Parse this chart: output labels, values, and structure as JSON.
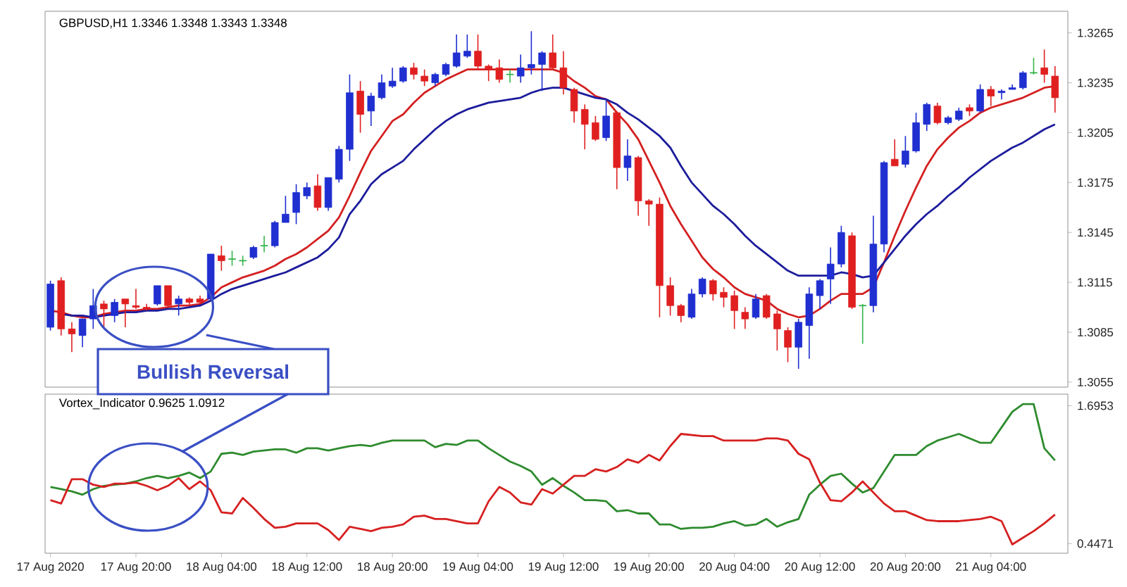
{
  "chart_data": [
    {
      "type": "candlestick",
      "title": "GBPUSD,H1 1.3346 1.3348 1.3343 1.3348",
      "categories": [
        null,
        null,
        null,
        null,
        null,
        null,
        null,
        null,
        null,
        null,
        null,
        null,
        null,
        null,
        null,
        null,
        null,
        null,
        null,
        null,
        null,
        null,
        null,
        null,
        null,
        null,
        null,
        null,
        null,
        null,
        null,
        null,
        null,
        null,
        null,
        null,
        null,
        null,
        null,
        null,
        null,
        null,
        null,
        null,
        null,
        null,
        null,
        null,
        null,
        null,
        null,
        null,
        null,
        null,
        null,
        null,
        null,
        null,
        null,
        null,
        null,
        null,
        null,
        null,
        null,
        null,
        null,
        null,
        null,
        null,
        null,
        null,
        null,
        null,
        null,
        null,
        null,
        null,
        null,
        null,
        null,
        null,
        null,
        null,
        null,
        null,
        null,
        null,
        null,
        null,
        null,
        null,
        null,
        null,
        null
      ],
      "ohlc": [
        [
          1.3088,
          1.3116,
          1.3086,
          1.3114
        ],
        [
          1.3116,
          1.3118,
          1.3083,
          1.3087
        ],
        [
          1.3087,
          1.3091,
          1.3073,
          1.3084
        ],
        [
          1.3083,
          1.3093,
          1.3076,
          1.3093
        ],
        [
          1.3093,
          1.3111,
          1.3087,
          1.3101
        ],
        [
          1.3102,
          1.3104,
          1.3087,
          1.3099
        ],
        [
          1.3095,
          1.3105,
          1.3091,
          1.3103
        ],
        [
          1.3105,
          1.3105,
          1.3088,
          1.3102
        ],
        [
          1.3101,
          1.3111,
          1.3099,
          1.31
        ],
        [
          1.31,
          1.3102,
          1.3098,
          1.3099
        ],
        [
          1.3102,
          1.3113,
          1.3101,
          1.3113
        ],
        [
          1.3113,
          1.3113,
          1.31,
          1.3101
        ],
        [
          1.3102,
          1.3107,
          1.3095,
          1.3105
        ],
        [
          1.3105,
          1.3106,
          1.3101,
          1.3103
        ],
        [
          1.3105,
          1.3107,
          1.3102,
          1.3103
        ],
        [
          1.3105,
          1.3132,
          1.3104,
          1.3132
        ],
        [
          1.3131,
          1.3137,
          1.3122,
          1.3128
        ],
        [
          1.3129,
          1.3134,
          1.3125,
          1.3129
        ],
        [
          1.3128,
          1.3131,
          1.3125,
          1.3128
        ],
        [
          1.313,
          1.3137,
          1.3129,
          1.3136
        ],
        [
          1.3137,
          1.3143,
          1.3133,
          1.3137
        ],
        [
          1.3137,
          1.3152,
          1.3136,
          1.3151
        ],
        [
          1.3151,
          1.3167,
          1.3151,
          1.3156
        ],
        [
          1.3157,
          1.3174,
          1.315,
          1.3169
        ],
        [
          1.3167,
          1.3175,
          1.3165,
          1.3172
        ],
        [
          1.3173,
          1.318,
          1.3158,
          1.316
        ],
        [
          1.316,
          1.3178,
          1.3158,
          1.3178
        ],
        [
          1.3177,
          1.3197,
          1.3175,
          1.3195
        ],
        [
          1.3195,
          1.324,
          1.3188,
          1.3229
        ],
        [
          1.323,
          1.3236,
          1.3205,
          1.3216
        ],
        [
          1.3218,
          1.3229,
          1.3209,
          1.3227
        ],
        [
          1.3226,
          1.324,
          1.3225,
          1.3235
        ],
        [
          1.3233,
          1.3244,
          1.3232,
          1.3236
        ],
        [
          1.3236,
          1.3245,
          1.3235,
          1.3244
        ],
        [
          1.3244,
          1.3247,
          1.3237,
          1.324
        ],
        [
          1.3239,
          1.3243,
          1.3233,
          1.3236
        ],
        [
          1.3235,
          1.3241,
          1.3233,
          1.324
        ],
        [
          1.324,
          1.3247,
          1.3239,
          1.3246
        ],
        [
          1.3245,
          1.3264,
          1.3244,
          1.3253
        ],
        [
          1.3251,
          1.3264,
          1.325,
          1.3254
        ],
        [
          1.3254,
          1.3264,
          1.3243,
          1.3245
        ],
        [
          1.3245,
          1.3246,
          1.3236,
          1.3243
        ],
        [
          1.3244,
          1.3249,
          1.3235,
          1.3237
        ],
        [
          1.324,
          1.3243,
          1.3235,
          1.324
        ],
        [
          1.3239,
          1.3252,
          1.3235,
          1.3244
        ],
        [
          1.3244,
          1.3266,
          1.324,
          1.3246
        ],
        [
          1.3246,
          1.3254,
          1.323,
          1.3253
        ],
        [
          1.3253,
          1.3264,
          1.3243,
          1.3244
        ],
        [
          1.3244,
          1.3254,
          1.3228,
          1.3232
        ],
        [
          1.3231,
          1.3232,
          1.3211,
          1.3218
        ],
        [
          1.3219,
          1.3222,
          1.3195,
          1.321
        ],
        [
          1.3211,
          1.3215,
          1.32,
          1.3201
        ],
        [
          1.3202,
          1.3225,
          1.32,
          1.3215
        ],
        [
          1.3217,
          1.3218,
          1.3171,
          1.3184
        ],
        [
          1.3184,
          1.3201,
          1.3176,
          1.3191
        ],
        [
          1.319,
          1.3191,
          1.3155,
          1.3164
        ],
        [
          1.3164,
          1.3165,
          1.3149,
          1.3162
        ],
        [
          1.3162,
          1.3166,
          1.3094,
          1.3113
        ],
        [
          1.3113,
          1.3118,
          1.3095,
          1.3101
        ],
        [
          1.3101,
          1.3102,
          1.3091,
          1.3095
        ],
        [
          1.3094,
          1.3111,
          1.3093,
          1.3108
        ],
        [
          1.3108,
          1.3118,
          1.3106,
          1.3117
        ],
        [
          1.3116,
          1.3117,
          1.3104,
          1.3108
        ],
        [
          1.3109,
          1.3112,
          1.31,
          1.3106
        ],
        [
          1.3107,
          1.311,
          1.3087,
          1.3098
        ],
        [
          1.3097,
          1.31,
          1.3087,
          1.3093
        ],
        [
          1.3094,
          1.3108,
          1.3093,
          1.3105
        ],
        [
          1.3107,
          1.3108,
          1.3093,
          1.3094
        ],
        [
          1.3096,
          1.3098,
          1.3074,
          1.3087
        ],
        [
          1.3086,
          1.3088,
          1.3067,
          1.3076
        ],
        [
          1.3076,
          1.3093,
          1.3063,
          1.3091
        ],
        [
          1.3089,
          1.3112,
          1.3069,
          1.3108
        ],
        [
          1.3107,
          1.3117,
          1.3099,
          1.3116
        ],
        [
          1.3117,
          1.3136,
          1.3102,
          1.3126
        ],
        [
          1.3126,
          1.3149,
          1.3124,
          1.3145
        ],
        [
          1.3143,
          1.3145,
          1.3099,
          1.31
        ],
        [
          1.3101,
          1.3102,
          1.3078,
          1.3101
        ],
        [
          1.3101,
          1.3155,
          1.3097,
          1.3138
        ],
        [
          1.3138,
          1.3188,
          1.3133,
          1.3187
        ],
        [
          1.3189,
          1.3201,
          1.3185,
          1.3185
        ],
        [
          1.3186,
          1.3203,
          1.3184,
          1.3194
        ],
        [
          1.3194,
          1.3217,
          1.3193,
          1.3211
        ],
        [
          1.321,
          1.3223,
          1.3206,
          1.3222
        ],
        [
          1.3221,
          1.3223,
          1.321,
          1.3211
        ],
        [
          1.3211,
          1.3215,
          1.321,
          1.3214
        ],
        [
          1.3213,
          1.322,
          1.3212,
          1.3218
        ],
        [
          1.322,
          1.3222,
          1.3215,
          1.3218
        ],
        [
          1.3218,
          1.3234,
          1.3217,
          1.3231
        ],
        [
          1.3231,
          1.3233,
          1.3221,
          1.3227
        ],
        [
          1.3229,
          1.3231,
          1.3225,
          1.323
        ],
        [
          1.3231,
          1.3234,
          1.3231,
          1.3232
        ],
        [
          1.3232,
          1.3242,
          1.3231,
          1.3241
        ],
        [
          1.3241,
          1.325,
          1.324,
          1.3241
        ],
        [
          1.3244,
          1.3255,
          1.3235,
          1.324
        ],
        [
          1.3239,
          1.3245,
          1.3217,
          1.3226
        ]
      ],
      "colors": [
        "#1f2fd0",
        "#e02020",
        "#e02020",
        "#1f2fd0",
        "#1f2fd0",
        "#e02020",
        "#1f2fd0",
        "#e02020",
        "#e02020",
        "#e02020",
        "#1f2fd0",
        "#e02020",
        "#1f2fd0",
        "#e02020",
        "#e02020",
        "#1f2fd0",
        "#e02020",
        "#33b54a",
        "#33b54a",
        "#1f2fd0",
        "#33b54a",
        "#1f2fd0",
        "#1f2fd0",
        "#1f2fd0",
        "#1f2fd0",
        "#e02020",
        "#1f2fd0",
        "#1f2fd0",
        "#1f2fd0",
        "#e02020",
        "#1f2fd0",
        "#1f2fd0",
        "#1f2fd0",
        "#1f2fd0",
        "#e02020",
        "#e02020",
        "#1f2fd0",
        "#1f2fd0",
        "#1f2fd0",
        "#1f2fd0",
        "#e02020",
        "#e02020",
        "#e02020",
        "#33b54a",
        "#1f2fd0",
        "#1f2fd0",
        "#1f2fd0",
        "#e02020",
        "#e02020",
        "#e02020",
        "#e02020",
        "#e02020",
        "#1f2fd0",
        "#e02020",
        "#1f2fd0",
        "#e02020",
        "#e02020",
        "#e02020",
        "#e02020",
        "#e02020",
        "#1f2fd0",
        "#1f2fd0",
        "#e02020",
        "#e02020",
        "#e02020",
        "#e02020",
        "#1f2fd0",
        "#e02020",
        "#e02020",
        "#e02020",
        "#1f2fd0",
        "#1f2fd0",
        "#1f2fd0",
        "#1f2fd0",
        "#1f2fd0",
        "#e02020",
        "#33b54a",
        "#1f2fd0",
        "#1f2fd0",
        "#e02020",
        "#1f2fd0",
        "#1f2fd0",
        "#1f2fd0",
        "#e02020",
        "#1f2fd0",
        "#1f2fd0",
        "#e02020",
        "#1f2fd0",
        "#e02020",
        "#1f2fd0",
        "#1f2fd0",
        "#1f2fd0",
        "#33b54a",
        "#e02020",
        "#e02020"
      ],
      "series": [
        {
          "type": "line",
          "color": "#d42020",
          "values": [
            1.3098,
            1.3097,
            1.3095,
            1.3094,
            1.3094,
            1.3096,
            1.3097,
            1.3098,
            1.3098,
            1.3099,
            1.3099,
            1.31,
            1.3101,
            1.3101,
            1.3102,
            1.3106,
            1.3112,
            1.3115,
            1.3118,
            1.312,
            1.3122,
            1.3125,
            1.3129,
            1.3132,
            1.3136,
            1.3141,
            1.3146,
            1.3154,
            1.3167,
            1.3181,
            1.3194,
            1.3203,
            1.3212,
            1.3216,
            1.3223,
            1.3229,
            1.3233,
            1.3237,
            1.324,
            1.3243,
            1.3243,
            1.3243,
            1.3243,
            1.3243,
            1.3243,
            1.3243,
            1.3243,
            1.3243,
            1.3241,
            1.3236,
            1.3232,
            1.3227,
            1.3225,
            1.3217,
            1.321,
            1.3201,
            1.3188,
            1.3175,
            1.3161,
            1.315,
            1.314,
            1.313,
            1.3123,
            1.3118,
            1.3112,
            1.3108,
            1.3106,
            1.3104,
            1.3099,
            1.3096,
            1.3094,
            1.3095,
            1.3099,
            1.3104,
            1.3108,
            1.3108,
            1.3108,
            1.3112,
            1.3127,
            1.3143,
            1.3158,
            1.3172,
            1.3185,
            1.3195,
            1.3202,
            1.3208,
            1.3212,
            1.3217,
            1.322,
            1.3222,
            1.3224,
            1.3226,
            1.3229,
            1.3232,
            1.3233
          ]
        },
        {
          "type": "line",
          "color": "#1c1c9c",
          "values": [
            null,
            1.3096,
            1.3095,
            1.3095,
            1.3094,
            1.3095,
            1.3096,
            1.3097,
            1.3097,
            1.3098,
            1.3098,
            1.3099,
            1.3099,
            1.31,
            1.3101,
            1.3104,
            1.3108,
            1.3111,
            1.3113,
            1.3115,
            1.3117,
            1.3119,
            1.3121,
            1.3124,
            1.3127,
            1.313,
            1.3135,
            1.3142,
            1.3156,
            1.3164,
            1.3174,
            1.318,
            1.3184,
            1.3188,
            1.3195,
            1.3201,
            1.3207,
            1.3212,
            1.3216,
            1.3219,
            1.3221,
            1.3223,
            1.3224,
            1.3225,
            1.3226,
            1.3229,
            1.3231,
            1.3232,
            1.3232,
            1.323,
            1.3228,
            1.3226,
            1.3225,
            1.3222,
            1.3217,
            1.3213,
            1.3208,
            1.3203,
            1.3196,
            1.3185,
            1.3175,
            1.3168,
            1.3161,
            1.3156,
            1.315,
            1.3143,
            1.3137,
            1.3132,
            1.3127,
            1.3122,
            1.3119,
            1.3119,
            1.3119,
            1.3119,
            1.3121,
            1.312,
            1.3118,
            1.3119,
            1.3127,
            1.3135,
            1.3143,
            1.315,
            1.3156,
            1.3161,
            1.3167,
            1.3172,
            1.3178,
            1.3183,
            1.3188,
            1.3192,
            1.3196,
            1.3199,
            1.3203,
            1.3207,
            1.321
          ]
        }
      ],
      "ylim": [
        1.3052,
        1.3278
      ],
      "yticks": [
        1.3055,
        1.3085,
        1.3115,
        1.3145,
        1.3175,
        1.3205,
        1.3235,
        1.3265
      ],
      "tick_labels": "y",
      "annotations": [
        "Bullish Reversal"
      ]
    },
    {
      "type": "line",
      "title": "Vortex_Indicator 0.9625 1.0912",
      "categories": [
        "17 Aug 2020",
        null,
        null,
        null,
        null,
        null,
        null,
        null,
        "17 Aug 20:00",
        null,
        null,
        null,
        null,
        null,
        null,
        null,
        "18 Aug 04:00",
        null,
        null,
        null,
        null,
        null,
        null,
        null,
        "18 Aug 12:00",
        null,
        null,
        null,
        null,
        null,
        null,
        null,
        "18 Aug 20:00",
        null,
        null,
        null,
        null,
        null,
        null,
        null,
        "19 Aug 04:00",
        null,
        null,
        null,
        null,
        null,
        null,
        null,
        "19 Aug 12:00",
        null,
        null,
        null,
        null,
        null,
        null,
        null,
        "19 Aug 20:00",
        null,
        null,
        null,
        null,
        null,
        null,
        null,
        "20 Aug 04:00",
        null,
        null,
        null,
        null,
        null,
        null,
        null,
        "20 Aug 12:00",
        null,
        null,
        null,
        null,
        null,
        null,
        null,
        "20 Aug 20:00",
        null,
        null,
        null,
        null,
        null,
        null,
        null,
        "21 Aug 04:00",
        null,
        null,
        null,
        null,
        null,
        null
      ],
      "series": [
        {
          "color": "#2e8b2e",
          "values": [
            0.96,
            0.94,
            0.92,
            0.89,
            0.94,
            0.97,
            0.98,
            0.99,
            1.01,
            1.04,
            1.06,
            1.04,
            1.06,
            1.09,
            1.04,
            1.1,
            1.26,
            1.27,
            1.25,
            1.28,
            1.29,
            1.3,
            1.3,
            1.27,
            1.31,
            1.31,
            1.29,
            1.31,
            1.33,
            1.34,
            1.33,
            1.36,
            1.38,
            1.38,
            1.38,
            1.38,
            1.32,
            1.35,
            1.34,
            1.38,
            1.38,
            1.31,
            1.25,
            1.19,
            1.15,
            1.1,
            0.98,
            1.04,
            0.97,
            0.91,
            0.84,
            0.84,
            0.83,
            0.74,
            0.75,
            0.72,
            0.72,
            0.62,
            0.62,
            0.58,
            0.59,
            0.59,
            0.6,
            0.63,
            0.65,
            0.61,
            0.62,
            0.67,
            0.6,
            0.64,
            0.67,
            0.89,
            0.98,
            1.06,
            1.08,
            0.99,
            0.91,
            0.95,
            1.1,
            1.25,
            1.25,
            1.25,
            1.33,
            1.38,
            1.41,
            1.44,
            1.4,
            1.36,
            1.36,
            1.5,
            1.64,
            1.71,
            1.71,
            1.31,
            1.2
          ]
        },
        {
          "color": "#d62020",
          "values": [
            0.84,
            0.81,
            1.03,
            1.03,
            0.98,
            0.96,
            0.99,
            0.99,
            1.0,
            0.97,
            0.93,
            0.97,
            1.04,
            0.94,
            1.01,
            0.93,
            0.73,
            0.72,
            0.86,
            0.77,
            0.67,
            0.59,
            0.6,
            0.63,
            0.63,
            0.63,
            0.57,
            0.48,
            0.6,
            0.58,
            0.56,
            0.59,
            0.6,
            0.62,
            0.69,
            0.7,
            0.67,
            0.67,
            0.65,
            0.63,
            0.63,
            0.83,
            0.96,
            0.91,
            0.82,
            0.8,
            0.94,
            0.9,
            0.98,
            1.06,
            1.06,
            1.12,
            1.1,
            1.14,
            1.21,
            1.18,
            1.25,
            1.2,
            1.33,
            1.44,
            1.43,
            1.42,
            1.42,
            1.38,
            1.38,
            1.38,
            1.38,
            1.4,
            1.4,
            1.38,
            1.26,
            1.21,
            1.0,
            0.84,
            0.83,
            0.91,
            1.01,
            0.91,
            0.81,
            0.74,
            0.74,
            0.7,
            0.66,
            0.65,
            0.65,
            0.65,
            0.66,
            0.67,
            0.69,
            0.65,
            0.44,
            0.5,
            0.56,
            0.63,
            0.71
          ]
        }
      ],
      "ylim": [
        0.36,
        1.8
      ],
      "yticks": [
        0.4471,
        1.6953
      ]
    }
  ]
}
